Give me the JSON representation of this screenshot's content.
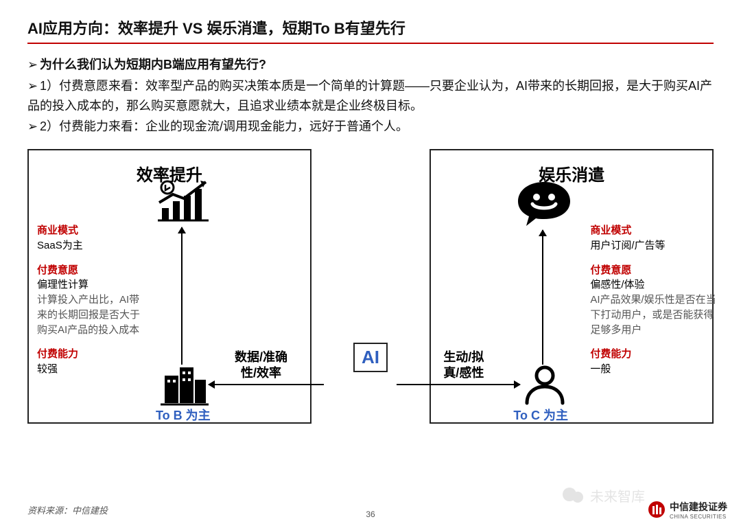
{
  "title": "AI应用方向：效率提升 VS 娱乐消遣，短期To B有望先行",
  "bullets": {
    "q": "为什么我们认为短期内B端应用有望先行?",
    "p1": "1）付费意愿来看：效率型产品的购买决策本质是一个简单的计算题——只要企业认为，AI带来的长期回报，是大于购买AI产品的投入成本的，那么购买意愿就大，且追求业绩本就是企业终极目标。",
    "p2": "2）付费能力来看：企业的现金流/调用现金能力，远好于普通个人。"
  },
  "center": {
    "ai": "AI",
    "left_label": "数据/准确性/效率",
    "right_label": "生动/拟真/感性"
  },
  "left": {
    "panel_title": "效率提升",
    "tob": "To B 为主",
    "model_h": "商业模式",
    "model_v": "SaaS为主",
    "will_h": "付费意愿",
    "will_v1": "偏理性计算",
    "will_v2": "计算投入产出比，AI带来的长期回报是否大于购买AI产品的投入成本",
    "cap_h": "付费能力",
    "cap_v": "较强"
  },
  "right": {
    "panel_title": "娱乐消遣",
    "toc": "To C 为主",
    "model_h": "商业模式",
    "model_v": "用户订阅/广告等",
    "will_h": "付费意愿",
    "will_v1": "偏感性/体验",
    "will_v2": "AI产品效果/娱乐性是否在当下打动用户，或是否能获得足够多用户",
    "cap_h": "付费能力",
    "cap_v": "一般"
  },
  "footer": {
    "source": "资料来源：中信建投",
    "page": "36",
    "brand_cn": "中信建投证券",
    "brand_en": "CHINA SECURITIES",
    "watermark": "未来智库"
  },
  "colors": {
    "accent_red": "#c00000",
    "accent_blue": "#2f5fbf",
    "text": "#111111",
    "border": "#222222"
  }
}
